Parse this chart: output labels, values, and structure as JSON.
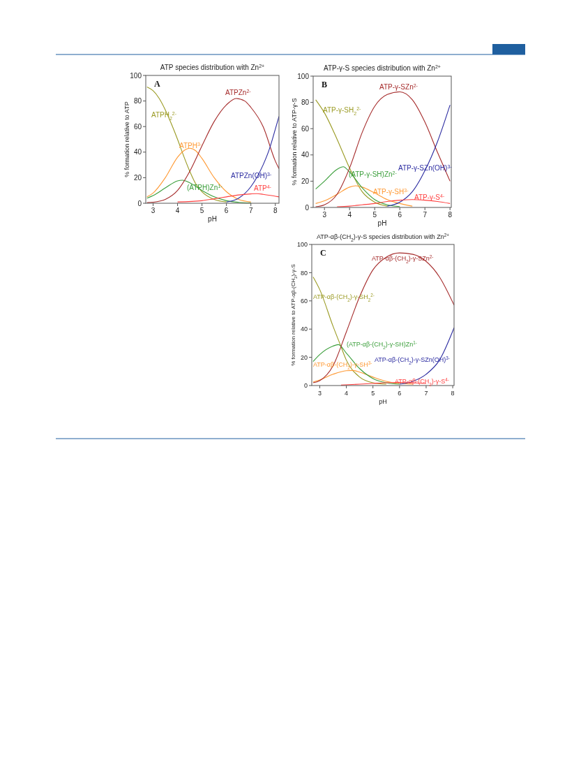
{
  "chart_data": [
    {
      "type": "line",
      "title": "ATP species distribution with Zn$^{2+}$",
      "xlabel": "pH",
      "ylabel": "% formation relative to ATP",
      "annotations": [
        "A"
      ],
      "xlim": [
        2.7,
        8.15
      ],
      "ylim": [
        0,
        100
      ],
      "xticks": [
        3,
        4,
        5,
        6,
        7,
        8
      ],
      "yticks": [
        0,
        20,
        40,
        60,
        80,
        100
      ],
      "grid": false,
      "marker": "none",
      "line_style": "solid",
      "series": [
        {
          "name": "ATPH$_{2}$$^{2-}$",
          "color": "#9a9a22",
          "x": [
            2.75,
            3,
            3.25,
            3.5,
            3.75,
            4,
            4.25,
            4.5,
            4.75,
            5,
            5.5,
            6
          ],
          "values": [
            91,
            88,
            82,
            73,
            62,
            50,
            37,
            25,
            15,
            9,
            3,
            1
          ]
        },
        {
          "name": "ATPH$^{3-}$",
          "color": "#ff9933",
          "x": [
            2.75,
            3,
            3.5,
            4,
            4.25,
            4.5,
            4.75,
            5,
            5.5,
            6,
            6.5,
            7
          ],
          "values": [
            5,
            8,
            20,
            36,
            41,
            43,
            41,
            35,
            20,
            9,
            3,
            1
          ]
        },
        {
          "name": "(ATPH)Zn$^{1-}$",
          "color": "#3a9e3a",
          "x": [
            2.75,
            3,
            3.5,
            4,
            4.2,
            4.5,
            5,
            5.5,
            6,
            6.5,
            7
          ],
          "values": [
            4,
            6,
            12,
            17.5,
            18,
            16,
            10,
            5,
            2,
            0.7,
            0.2
          ]
        },
        {
          "name": "ATPZn$^{2-}$",
          "color": "#a52a2a",
          "x": [
            2.75,
            3,
            3.5,
            4,
            4.5,
            5,
            5.5,
            6,
            6.4,
            6.75,
            7,
            7.5,
            8,
            8.15
          ],
          "values": [
            0.5,
            0.8,
            3,
            10,
            25,
            45,
            64,
            77,
            82,
            80,
            75,
            60,
            33,
            27
          ]
        },
        {
          "name": "ATPZn(OH)$^{3-}$",
          "color": "#2a2aa0",
          "x": [
            6,
            6.5,
            7,
            7.5,
            7.75,
            8,
            8.15
          ],
          "values": [
            1,
            4,
            13,
            30,
            42,
            58,
            68
          ]
        },
        {
          "name": "ATP$^{4-}$",
          "color": "#ff4040",
          "x": [
            4,
            5,
            5.5,
            6,
            6.5,
            7,
            7.25,
            7.5,
            8,
            8.15
          ],
          "values": [
            1,
            2,
            3.5,
            5,
            6.5,
            7.3,
            7.5,
            7,
            5.5,
            5
          ]
        }
      ]
    },
    {
      "type": "line",
      "title": "ATP-γ-S species distribution with Zn$^{2+}$",
      "xlabel": "pH",
      "ylabel": "% formation relative to ATP-γ-S",
      "annotations": [
        "B"
      ],
      "xlim": [
        2.55,
        8.05
      ],
      "ylim": [
        0,
        100
      ],
      "xticks": [
        3,
        4,
        5,
        6,
        7,
        8
      ],
      "yticks": [
        0,
        20,
        40,
        60,
        80,
        100
      ],
      "grid": false,
      "marker": "none",
      "line_style": "solid",
      "series": [
        {
          "name": "ATP-γ-SH$_{2}$$^{2-}$",
          "color": "#9a9a22",
          "x": [
            2.65,
            3,
            3.5,
            4,
            4.5,
            5,
            5.5
          ],
          "values": [
            82,
            72,
            52,
            30,
            12,
            4,
            1
          ]
        },
        {
          "name": "ATP-γ-SH$^{3-}$",
          "color": "#ff9933",
          "x": [
            2.65,
            3,
            3.5,
            4,
            4.25,
            4.5,
            5,
            5.5,
            6,
            6.5
          ],
          "values": [
            3,
            5,
            10,
            15.5,
            16.5,
            15.5,
            11,
            6,
            3,
            1
          ]
        },
        {
          "name": "(ATP-γ-SH)Zn$^{2-}$",
          "color": "#3a9e3a",
          "x": [
            2.65,
            3,
            3.5,
            3.75,
            4,
            4.5,
            5,
            5.5,
            6
          ],
          "values": [
            14,
            20,
            29,
            31,
            27,
            15,
            6,
            2,
            0.7
          ]
        },
        {
          "name": "ATP-γ-SZn$^{2-}$",
          "color": "#a52a2a",
          "x": [
            2.65,
            3,
            3.5,
            4,
            4.5,
            5,
            5.5,
            6,
            6.5,
            7,
            7.5,
            8
          ],
          "values": [
            0.5,
            2,
            10,
            30,
            57,
            77,
            86,
            88,
            82,
            65,
            42,
            20
          ]
        },
        {
          "name": "ATP-γ-SZn(OH)$^{3-}$",
          "color": "#2a2aa0",
          "x": [
            5.5,
            6,
            6.5,
            7,
            7.5,
            8
          ],
          "values": [
            1,
            4,
            12,
            28,
            50,
            78
          ]
        },
        {
          "name": "ATP-γ-S$^{4-}$",
          "color": "#ff4040",
          "x": [
            3.5,
            4,
            4.5,
            5,
            5.5,
            6,
            6.5,
            7,
            7.5,
            8
          ],
          "values": [
            0.5,
            1,
            2,
            3,
            4.5,
            5.5,
            6,
            5.5,
            4.5,
            3
          ]
        }
      ]
    },
    {
      "type": "line",
      "title": "ATP-αβ-(CH$_{2}$)-γ-S species distribution with Zn$^{2+}$",
      "xlabel": "pH",
      "ylabel": "% formation relative to ATP-αβ-(CH$_{2}$)-γ-S",
      "annotations": [
        "C"
      ],
      "xlim": [
        2.7,
        8.05
      ],
      "ylim": [
        0,
        100
      ],
      "xticks": [
        3,
        4,
        5,
        6,
        7,
        8
      ],
      "yticks": [
        0,
        20,
        40,
        60,
        80,
        100
      ],
      "grid": false,
      "marker": "none",
      "line_style": "solid",
      "series": [
        {
          "name": "ATP-αβ-(CH$_{2}$)-γ-SH$_{2}$$^{2-}$",
          "color": "#9a9a22",
          "x": [
            2.75,
            3,
            3.5,
            3.75,
            4,
            4.5,
            5,
            5.5
          ],
          "values": [
            77,
            68,
            42,
            30,
            18,
            6,
            2,
            1
          ]
        },
        {
          "name": "ATP-αβ-(CH$_{2}$)-γ-SH$^{3-}$",
          "color": "#ff9933",
          "x": [
            2.75,
            3,
            3.5,
            4,
            4.25,
            4.5,
            5,
            5.5,
            6,
            6.5
          ],
          "values": [
            2.5,
            4,
            8,
            10.5,
            10.7,
            9.5,
            6,
            3,
            1.5,
            1
          ]
        },
        {
          "name": "(ATP-αβ-(CH$_{2}$)-γ-SH)Zn$^{1-}$",
          "color": "#3a9e3a",
          "x": [
            2.75,
            3,
            3.5,
            3.7,
            4,
            4.5,
            5,
            5.5,
            6
          ],
          "values": [
            17,
            22,
            28,
            29,
            23,
            12,
            5,
            2,
            1
          ]
        },
        {
          "name": "ATP-αβ-(CH$_{2}$)-γ-SZn$^{2-}$",
          "color": "#a52a2a",
          "x": [
            2.75,
            3,
            3.5,
            4,
            4.5,
            5,
            5.5,
            6,
            6.5,
            7,
            7.5,
            8.05
          ],
          "values": [
            2,
            3.5,
            14,
            38,
            63,
            82,
            91,
            94,
            93,
            88,
            77,
            57
          ]
        },
        {
          "name": "ATP-αβ-(CH$_{2}$)-γ-SZn(OH)$^{3-}$",
          "color": "#2a2aa0",
          "x": [
            6,
            6.5,
            7,
            7.5,
            8.05
          ],
          "values": [
            1,
            3,
            8,
            18,
            41
          ]
        },
        {
          "name": "ATP-αβ-(CH$_{2}$)-γ-S$^{4-}$",
          "color": "#ff4040",
          "x": [
            3.8,
            4.5,
            5,
            5.5,
            6,
            6.5,
            7
          ],
          "values": [
            0.3,
            1,
            1.5,
            2,
            2.2,
            2,
            1.5
          ]
        }
      ]
    }
  ]
}
